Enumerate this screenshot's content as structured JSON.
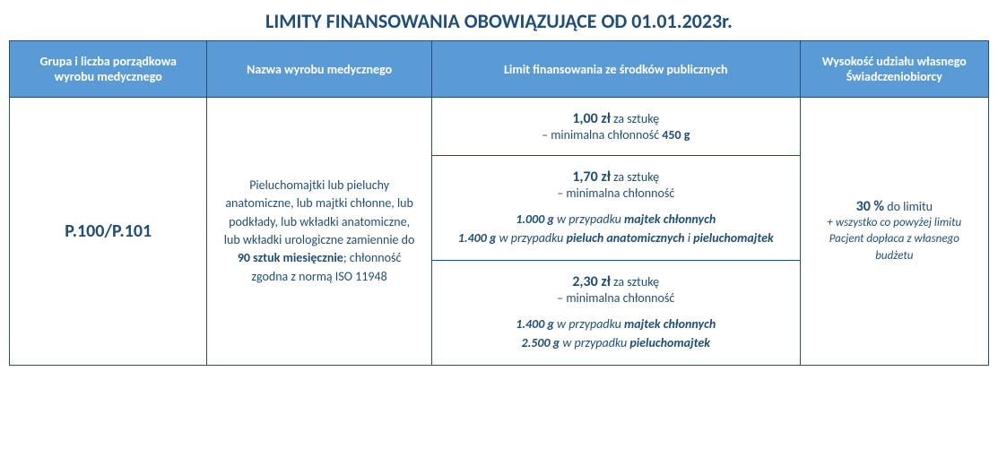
{
  "title": "LIMITY FINANSOWANIA OBOWIĄZUJĄCE OD 01.01.2023r.",
  "headers": {
    "col1": "Grupa i liczba porządkowa wyrobu medycznego",
    "col2": "Nazwa wyrobu medycznego",
    "col3": "Limit finansowania ze środków publicznych",
    "col4": "Wysokość udziału własnego Świadczeniobiorcy"
  },
  "code": "P.100/P.101",
  "desc": {
    "p1": "Pieluchomajtki lub pieluchy anatomiczne, lub majtki chłonne, lub podkłady, lub wkładki anatomiczne, lub wkładki urologiczne zamiennie do ",
    "p1b": "90 sztuk miesięcznie",
    "p2": "; chłonność zgodna z normą ISO 11948"
  },
  "limit1": {
    "price": "1,00 zł",
    "suffix": " za sztukę",
    "chlon_label": "– minimalna chłonność ",
    "chlon_val": "450 g"
  },
  "limit2": {
    "price": "1,70 zł",
    "suffix": " za sztukę",
    "chlon_label": "– minimalna chłonność",
    "d1a": "1.000 g",
    "d1b": " w przypadku ",
    "d1c": "majtek chłonnych",
    "d2a": "1.400 g",
    "d2b": " w przypadku ",
    "d2c": "pieluch anatomicznych",
    "d2d": " i ",
    "d2e": "pieluchomajtek"
  },
  "limit3": {
    "price": "2,30 zł",
    "suffix": " za sztukę",
    "chlon_label": "– minimalna chłonność",
    "d1a": "1.400 g",
    "d1b": " w przypadku ",
    "d1c": "majtek chłonnych",
    "d2a": "2.500 g",
    "d2b": " w przypadku ",
    "d2c": "pieluchomajtek"
  },
  "share": {
    "percent": "30 %",
    "suffix": " do limitu",
    "sub1": "+ wszystko co powyżej limitu",
    "sub2": "Pacjent dopłaca z własnego budżetu"
  }
}
